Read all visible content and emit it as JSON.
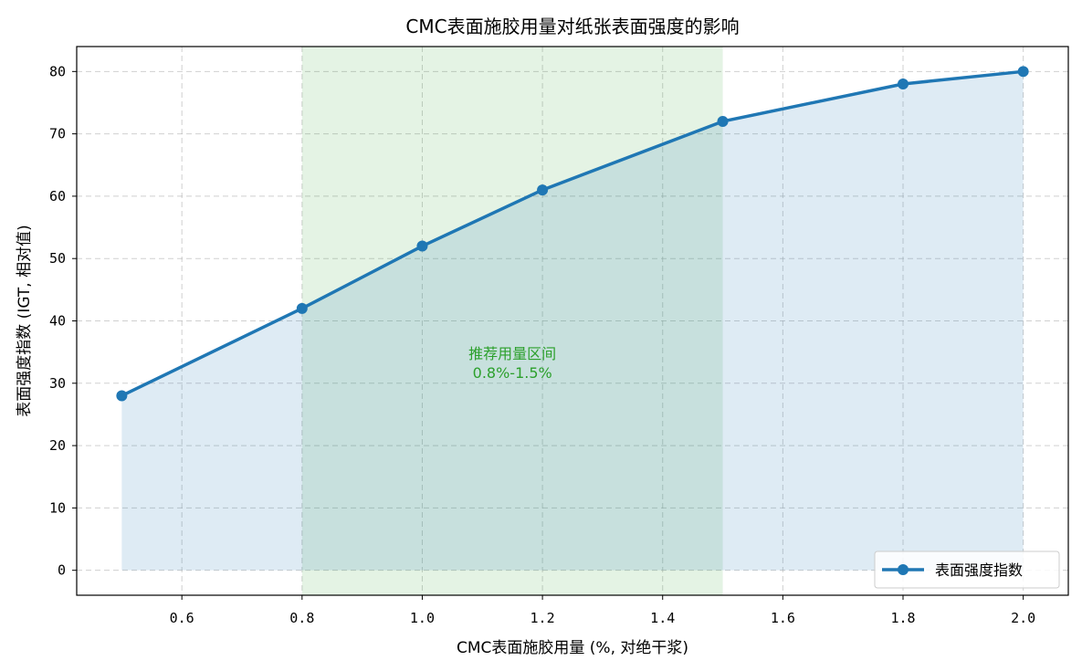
{
  "chart_data": {
    "type": "area",
    "title": "CMC表面施胶用量对纸张表面强度的影响",
    "xlabel": "CMC表面施胶用量 (%, 对绝干浆)",
    "ylabel": "表面强度指数 (IGT, 相对值)",
    "xlim": [
      0.425,
      2.075
    ],
    "ylim": [
      -4,
      84
    ],
    "xticks": [
      0.6,
      0.8,
      1.0,
      1.2,
      1.4,
      1.6,
      1.8,
      2.0
    ],
    "xtick_labels": [
      "0.6",
      "0.8",
      "1.0",
      "1.2",
      "1.4",
      "1.6",
      "1.8",
      "2.0"
    ],
    "yticks": [
      0,
      10,
      20,
      30,
      40,
      50,
      60,
      70,
      80
    ],
    "ytick_labels": [
      "0",
      "10",
      "20",
      "30",
      "40",
      "50",
      "60",
      "70",
      "80"
    ],
    "grid": true,
    "legend_position": "lower right",
    "series": [
      {
        "name": "表面强度指数",
        "x": [
          0.5,
          0.8,
          1.0,
          1.2,
          1.5,
          1.8,
          2.0
        ],
        "values": [
          28,
          42,
          52,
          61,
          72,
          78,
          80
        ],
        "color": "#1f77b4",
        "fill_color": "#1f77b4"
      }
    ],
    "highlight_region": {
      "x_range": [
        0.8,
        1.5
      ],
      "color": "#2ca02c"
    },
    "annotation": {
      "lines": [
        "推荐用量区间",
        "0.8%-1.5%"
      ],
      "x": 1.15,
      "y": 33.5
    }
  }
}
